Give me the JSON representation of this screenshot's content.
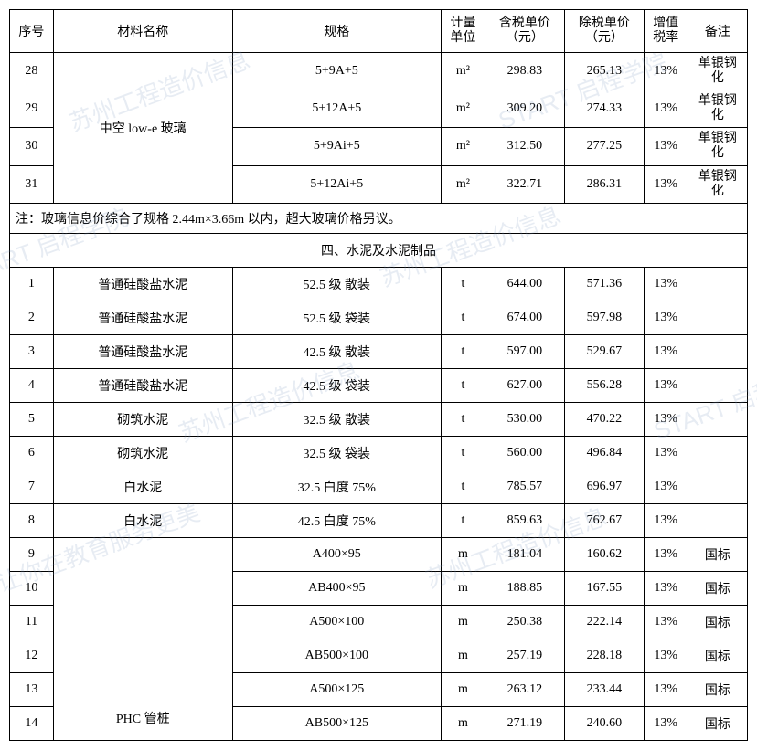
{
  "columns": {
    "c1": "序号",
    "c2": "材料名称",
    "c3": "规格",
    "c4": "计量\n单位",
    "c5": "含税单价\n（元）",
    "c6": "除税单价\n（元）",
    "c7": "增值\n税率",
    "c8": "备注"
  },
  "widths": {
    "c1": 44,
    "c2": 180,
    "c3": 210,
    "c4": 44,
    "c5": 80,
    "c6": 80,
    "c7": 44,
    "c8": 60
  },
  "watermark": {
    "text1": "苏州工程造价信息",
    "text2": "START 启程学院",
    "text3": "让你在教育服务更美"
  },
  "glass": {
    "name": "中空 low-e 玻璃",
    "rows": [
      {
        "idx": "28",
        "spec": "5+9A+5",
        "unit": "m²",
        "p1": "298.83",
        "p2": "265.13",
        "tax": "13%",
        "remark": "单银钢化"
      },
      {
        "idx": "29",
        "spec": "5+12A+5",
        "unit": "m²",
        "p1": "309.20",
        "p2": "274.33",
        "tax": "13%",
        "remark": "单银钢化"
      },
      {
        "idx": "30",
        "spec": "5+9Ai+5",
        "unit": "m²",
        "p1": "312.50",
        "p2": "277.25",
        "tax": "13%",
        "remark": "单银钢化"
      },
      {
        "idx": "31",
        "spec": "5+12Ai+5",
        "unit": "m²",
        "p1": "322.71",
        "p2": "286.31",
        "tax": "13%",
        "remark": "单银钢化"
      }
    ]
  },
  "note": "注：玻璃信息价综合了规格 2.44m×3.66m 以内，超大玻璃价格另议。",
  "section_title": "四、水泥及水泥制品",
  "cement": {
    "rows": [
      {
        "idx": "1",
        "name": "普通硅酸盐水泥",
        "spec": "52.5 级 散装",
        "unit": "t",
        "p1": "644.00",
        "p2": "571.36",
        "tax": "13%",
        "remark": ""
      },
      {
        "idx": "2",
        "name": "普通硅酸盐水泥",
        "spec": "52.5 级 袋装",
        "unit": "t",
        "p1": "674.00",
        "p2": "597.98",
        "tax": "13%",
        "remark": ""
      },
      {
        "idx": "3",
        "name": "普通硅酸盐水泥",
        "spec": "42.5 级 散装",
        "unit": "t",
        "p1": "597.00",
        "p2": "529.67",
        "tax": "13%",
        "remark": ""
      },
      {
        "idx": "4",
        "name": "普通硅酸盐水泥",
        "spec": "42.5 级 袋装",
        "unit": "t",
        "p1": "627.00",
        "p2": "556.28",
        "tax": "13%",
        "remark": ""
      },
      {
        "idx": "5",
        "name": "砌筑水泥",
        "spec": "32.5 级 散装",
        "unit": "t",
        "p1": "530.00",
        "p2": "470.22",
        "tax": "13%",
        "remark": ""
      },
      {
        "idx": "6",
        "name": "砌筑水泥",
        "spec": "32.5 级 袋装",
        "unit": "t",
        "p1": "560.00",
        "p2": "496.84",
        "tax": "13%",
        "remark": ""
      },
      {
        "idx": "7",
        "name": "白水泥",
        "spec": "32.5 白度 75%",
        "unit": "t",
        "p1": "785.57",
        "p2": "696.97",
        "tax": "13%",
        "remark": ""
      },
      {
        "idx": "8",
        "name": "白水泥",
        "spec": "42.5 白度 75%",
        "unit": "t",
        "p1": "859.63",
        "p2": "762.67",
        "tax": "13%",
        "remark": ""
      }
    ]
  },
  "phc": {
    "name": "PHC 管桩",
    "rows": [
      {
        "idx": "9",
        "spec": "A400×95",
        "unit": "m",
        "p1": "181.04",
        "p2": "160.62",
        "tax": "13%",
        "remark": "国标"
      },
      {
        "idx": "10",
        "spec": "AB400×95",
        "unit": "m",
        "p1": "188.85",
        "p2": "167.55",
        "tax": "13%",
        "remark": "国标"
      },
      {
        "idx": "11",
        "spec": "A500×100",
        "unit": "m",
        "p1": "250.38",
        "p2": "222.14",
        "tax": "13%",
        "remark": "国标"
      },
      {
        "idx": "12",
        "spec": "AB500×100",
        "unit": "m",
        "p1": "257.19",
        "p2": "228.18",
        "tax": "13%",
        "remark": "国标"
      },
      {
        "idx": "13",
        "spec": "A500×125",
        "unit": "m",
        "p1": "263.12",
        "p2": "233.44",
        "tax": "13%",
        "remark": "国标"
      },
      {
        "idx": "14",
        "spec": "AB500×125",
        "unit": "m",
        "p1": "271.19",
        "p2": "240.60",
        "tax": "13%",
        "remark": "国标"
      }
    ]
  }
}
